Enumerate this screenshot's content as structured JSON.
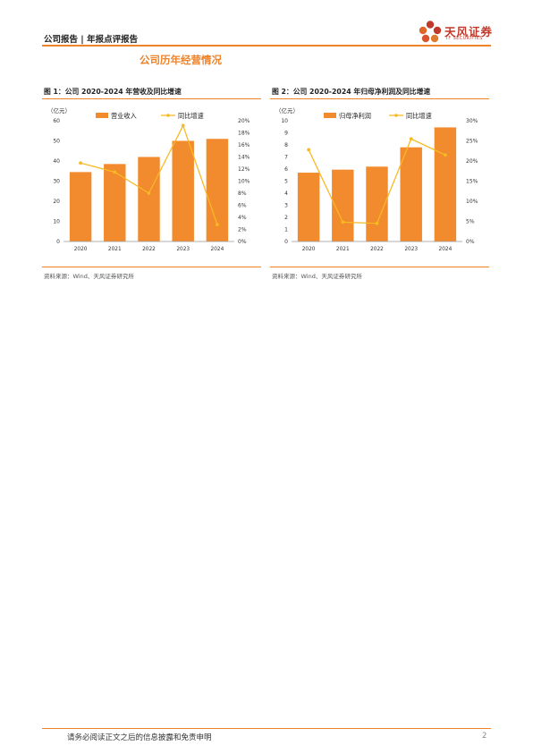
{
  "header": {
    "title": "公司报告 | 年报点评报告",
    "logo_text": "天风证券",
    "logo_sub": "TF SECURITIES"
  },
  "section_title": "公司历年经营情况",
  "figures": [
    {
      "title": "图 1：公司 2020-2024 年营收及同比增速",
      "source": "资料来源：Wind、天风证券研究所",
      "chart_data": {
        "type": "bar",
        "unit_label": "（亿元）",
        "categories": [
          "2020",
          "2021",
          "2022",
          "2023",
          "2024"
        ],
        "series": [
          {
            "name": "营业收入",
            "type": "bar",
            "axis": "left",
            "values": [
              34.5,
              38.5,
              42,
              50,
              51
            ]
          },
          {
            "name": "同比增速",
            "type": "line",
            "axis": "right",
            "values": [
              13.0,
              11.5,
              8.0,
              19.2,
              2.8
            ]
          }
        ],
        "y_left": {
          "min": 0,
          "max": 60,
          "step": 10,
          "ticks": [
            "0",
            "10",
            "20",
            "30",
            "40",
            "50",
            "60"
          ]
        },
        "y_right": {
          "min": 0,
          "max": 20,
          "step": 2,
          "ticks": [
            "0%",
            "2%",
            "4%",
            "6%",
            "8%",
            "10%",
            "12%",
            "14%",
            "16%",
            "18%",
            "20%"
          ]
        },
        "legend": "top",
        "grid": false
      }
    },
    {
      "title": "图 2：公司 2020-2024 年归母净利润及同比增速",
      "source": "资料来源：Wind、天风证券研究所",
      "chart_data": {
        "type": "bar",
        "unit_label": "（亿元）",
        "categories": [
          "2020",
          "2021",
          "2022",
          "2023",
          "2024"
        ],
        "series": [
          {
            "name": "归母净利润",
            "type": "bar",
            "axis": "left",
            "values": [
              5.7,
              5.95,
              6.2,
              7.8,
              9.45
            ]
          },
          {
            "name": "同比增速",
            "type": "line",
            "axis": "right",
            "values": [
              22.8,
              4.8,
              4.5,
              25.5,
              21.5
            ]
          }
        ],
        "y_left": {
          "min": 0,
          "max": 10,
          "step": 1,
          "ticks": [
            "0",
            "1",
            "2",
            "3",
            "4",
            "5",
            "6",
            "7",
            "8",
            "9",
            "10"
          ]
        },
        "y_right": {
          "min": 0,
          "max": 30,
          "step": 5,
          "ticks": [
            "0%",
            "5%",
            "10%",
            "15%",
            "20%",
            "25%",
            "30%"
          ]
        },
        "legend": "top",
        "grid": false
      }
    }
  ],
  "footer": {
    "disclaimer": "请务必阅读正文之后的信息披露和免责申明",
    "page_number": "2"
  },
  "colors": {
    "accent": "#f08228",
    "bar": "#f28a2e",
    "line": "#f7b924",
    "brand": "#c0392b"
  }
}
